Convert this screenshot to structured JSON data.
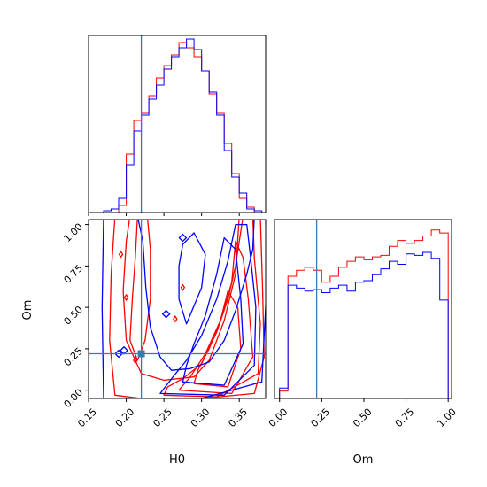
{
  "chart_data": {
    "type": "corner",
    "truth": {
      "H0": 0.22,
      "Om": 0.22
    },
    "truth_color": "#3a78b0",
    "series": [
      {
        "color": "#ff0000"
      },
      {
        "color": "#0000ff"
      }
    ],
    "panels": [
      {
        "id": "hist-H0",
        "type": "histogram",
        "xlim": [
          0.15,
          0.385
        ],
        "bin_edges": [
          0.17,
          0.18,
          0.19,
          0.2,
          0.21,
          0.22,
          0.23,
          0.24,
          0.25,
          0.26,
          0.27,
          0.28,
          0.29,
          0.3,
          0.31,
          0.32,
          0.33,
          0.34,
          0.35,
          0.36,
          0.37,
          0.38
        ],
        "ylim": [
          0,
          10
        ],
        "series_counts": [
          [
            0,
            0,
            0.4,
            3.3,
            5.2,
            5.6,
            6.6,
            7.6,
            8.3,
            8.9,
            9.6,
            9.3,
            8.8,
            8.0,
            6.7,
            5.6,
            3.9,
            2.2,
            0.8,
            0.3,
            0
          ],
          [
            0.1,
            0.2,
            0.8,
            2.7,
            4.6,
            5.5,
            6.4,
            7.2,
            8.1,
            8.8,
            9.3,
            9.8,
            9.2,
            8.0,
            6.8,
            5.5,
            3.5,
            2.0,
            1.1,
            0.2,
            0.1
          ]
        ]
      },
      {
        "id": "hist-Om",
        "type": "histogram",
        "xlim": [
          -0.03,
          1.02
        ],
        "bin_edges": [
          0.0,
          0.05,
          0.1,
          0.15,
          0.2,
          0.25,
          0.3,
          0.35,
          0.4,
          0.45,
          0.5,
          0.55,
          0.6,
          0.65,
          0.7,
          0.75,
          0.8,
          0.85,
          0.9,
          0.95,
          1.0
        ],
        "ylim": [
          0,
          12
        ],
        "series_counts": [
          [
            0.5,
            8.2,
            8.6,
            8.8,
            8.6,
            7.8,
            8.2,
            8.8,
            9.2,
            9.5,
            9.3,
            9.5,
            9.6,
            10.2,
            10.6,
            10.4,
            10.6,
            10.9,
            11.3,
            11.1
          ],
          [
            0.7,
            7.6,
            7.4,
            7.2,
            7.3,
            7.1,
            7.4,
            7.6,
            7.2,
            7.8,
            7.9,
            8.3,
            8.7,
            9.2,
            9.0,
            9.7,
            9.6,
            9.8,
            9.4,
            6.6
          ]
        ]
      },
      {
        "id": "contour-H0-Om",
        "type": "contour",
        "xlim": [
          0.15,
          0.385
        ],
        "ylim": [
          -0.05,
          1.03
        ],
        "xlabel": "H0",
        "ylabel": "Om",
        "x_ticks": [
          "0.15",
          "0.20",
          "0.25",
          "0.30",
          "0.35"
        ],
        "x_tick_values": [
          0.15,
          0.2,
          0.25,
          0.3,
          0.35
        ],
        "y_ticks": [
          "0.00",
          "0.25",
          "0.50",
          "0.75",
          "1.00"
        ],
        "y_tick_values": [
          0.0,
          0.25,
          0.5,
          0.75,
          1.0
        ]
      }
    ],
    "om_axis": {
      "xlabel": "Om",
      "x_ticks": [
        "0.00",
        "0.25",
        "0.50",
        "0.75",
        "1.00"
      ],
      "x_tick_values": [
        0.0,
        0.25,
        0.5,
        0.75,
        1.0
      ]
    }
  }
}
